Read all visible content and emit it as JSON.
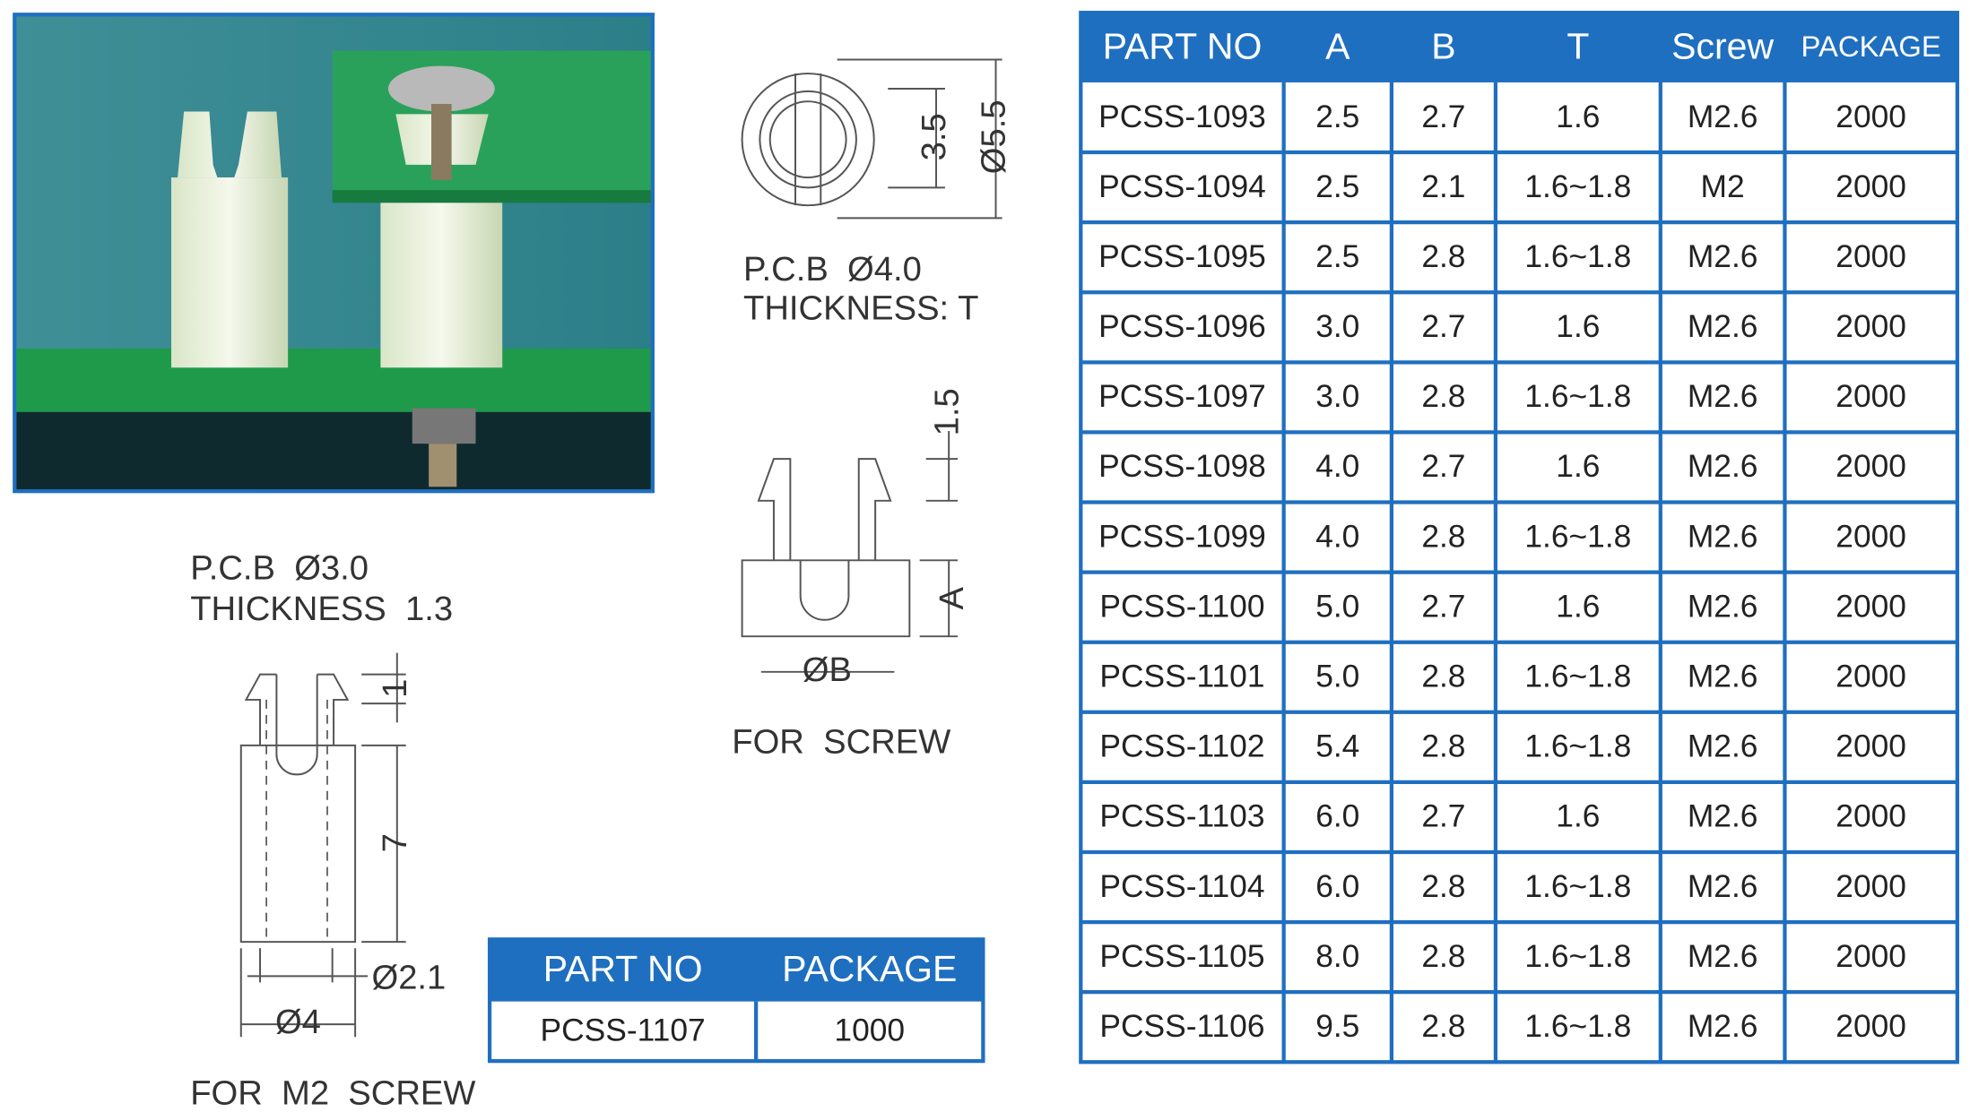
{
  "drawing_top": {
    "pcb": "P.C.B  Ø4.0",
    "thickness": "THICKNESS: T",
    "dim_inner": "3.5",
    "dim_outer": "Ø5.5"
  },
  "drawing_screw": {
    "dim_top": "1.5",
    "dim_a": "A",
    "dim_b": "ØB",
    "caption": "FOR  SCREW"
  },
  "drawing_m2": {
    "pcb": "P.C.B  Ø3.0",
    "thickness": "THICKNESS  1.3",
    "dim_top": "1",
    "dim_body": "7",
    "dim_hole": "Ø2.1",
    "dim_outer": "Ø4",
    "caption": "FOR  M2  SCREW"
  },
  "small_table": {
    "header": [
      "PART NO",
      "PACKAGE"
    ],
    "rows": [
      [
        "PCSS-1107",
        "1000"
      ]
    ]
  },
  "main_table": {
    "header": [
      "PART NO",
      "A",
      "B",
      "T",
      "Screw",
      "PACKAGE"
    ],
    "rows": [
      [
        "PCSS-1093",
        "2.5",
        "2.7",
        "1.6",
        "M2.6",
        "2000"
      ],
      [
        "PCSS-1094",
        "2.5",
        "2.1",
        "1.6~1.8",
        "M2",
        "2000"
      ],
      [
        "PCSS-1095",
        "2.5",
        "2.8",
        "1.6~1.8",
        "M2.6",
        "2000"
      ],
      [
        "PCSS-1096",
        "3.0",
        "2.7",
        "1.6",
        "M2.6",
        "2000"
      ],
      [
        "PCSS-1097",
        "3.0",
        "2.8",
        "1.6~1.8",
        "M2.6",
        "2000"
      ],
      [
        "PCSS-1098",
        "4.0",
        "2.7",
        "1.6",
        "M2.6",
        "2000"
      ],
      [
        "PCSS-1099",
        "4.0",
        "2.8",
        "1.6~1.8",
        "M2.6",
        "2000"
      ],
      [
        "PCSS-1100",
        "5.0",
        "2.7",
        "1.6",
        "M2.6",
        "2000"
      ],
      [
        "PCSS-1101",
        "5.0",
        "2.8",
        "1.6~1.8",
        "M2.6",
        "2000"
      ],
      [
        "PCSS-1102",
        "5.4",
        "2.8",
        "1.6~1.8",
        "M2.6",
        "2000"
      ],
      [
        "PCSS-1103",
        "6.0",
        "2.7",
        "1.6",
        "M2.6",
        "2000"
      ],
      [
        "PCSS-1104",
        "6.0",
        "2.8",
        "1.6~1.8",
        "M2.6",
        "2000"
      ],
      [
        "PCSS-1105",
        "8.0",
        "2.8",
        "1.6~1.8",
        "M2.6",
        "2000"
      ],
      [
        "PCSS-1106",
        "9.5",
        "2.8",
        "1.6~1.8",
        "M2.6",
        "2000"
      ]
    ]
  }
}
